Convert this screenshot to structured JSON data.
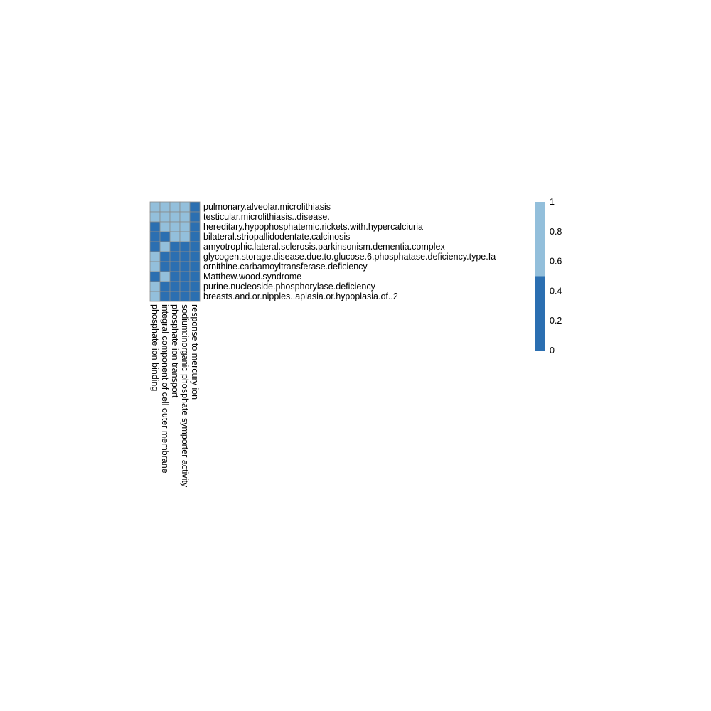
{
  "chart_data": {
    "type": "heatmap",
    "rows": [
      "pulmonary.alveolar.microlithiasis",
      "testicular.microlithiasis..disease.",
      "hereditary.hypophosphatemic.rickets.with.hypercalciuria",
      "bilateral.striopallidodentate.calcinosis",
      "amyotrophic.lateral.sclerosis.parkinsonism.dementia.complex",
      "glycogen.storage.disease.due.to.glucose.6.phosphatase.deficiency.type.Ia",
      "ornithine.carbamoyltransferase.deficiency",
      "Matthew.wood.syndrome",
      "purine.nucleoside.phosphorylase.deficiency",
      "breasts.and.or.nipples..aplasia.or.hypoplasia.of..2"
    ],
    "columns": [
      "phosphate ion binding",
      "integral component of cell outer membrane",
      "phosphate ion transport",
      "sodium:inorganic phosphate symporter activity",
      "response to mercury ion"
    ],
    "values": [
      [
        1,
        1,
        1,
        1,
        0
      ],
      [
        1,
        1,
        1,
        1,
        0
      ],
      [
        0,
        1,
        1,
        1,
        0
      ],
      [
        0,
        0,
        1,
        1,
        0
      ],
      [
        0,
        1,
        0,
        0,
        0
      ],
      [
        1,
        0,
        0,
        0,
        0
      ],
      [
        1,
        0,
        0,
        0,
        0
      ],
      [
        0,
        1,
        0,
        0,
        0
      ],
      [
        1,
        0,
        0,
        0,
        0
      ],
      [
        1,
        0,
        0,
        0,
        0
      ]
    ],
    "color_scale": {
      "low_color": "#2b6fb1",
      "high_color": "#93bfdb",
      "border_color": "#8a8a8a",
      "ticks": [
        "0",
        "0.2",
        "0.4",
        "0.6",
        "0.8",
        "1"
      ],
      "range": [
        0,
        1
      ]
    }
  }
}
